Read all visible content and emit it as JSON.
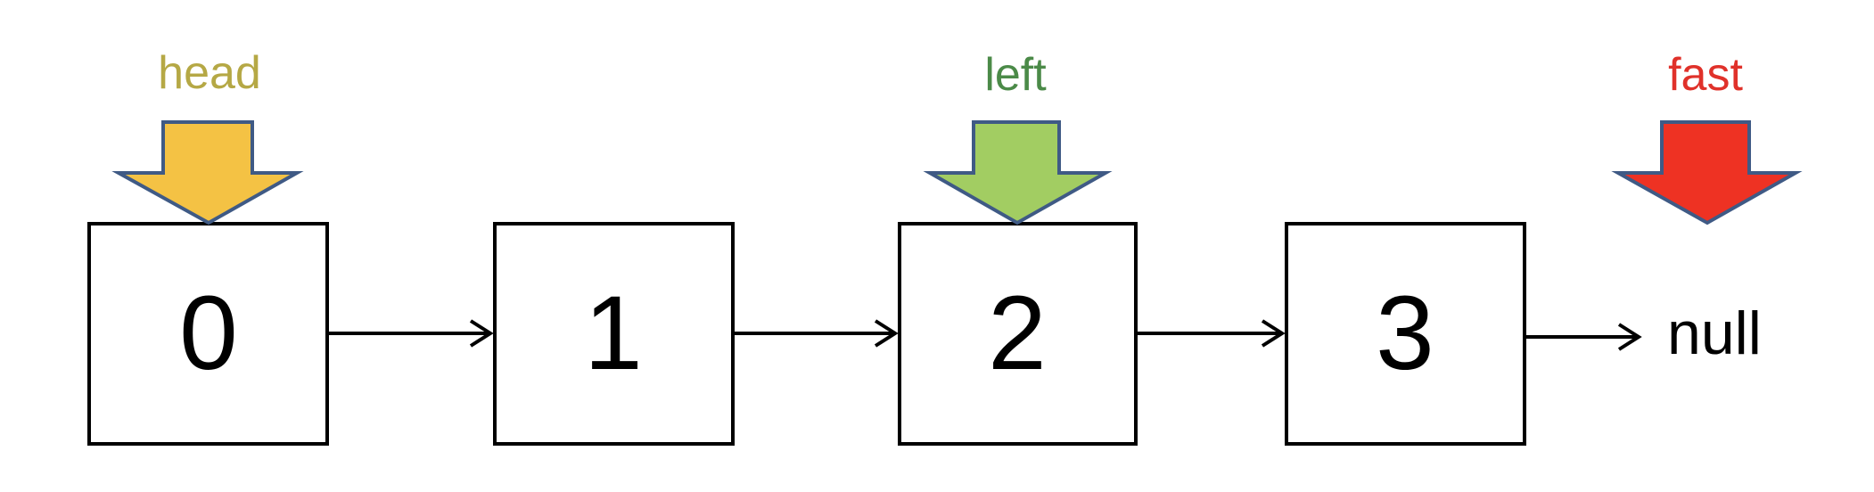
{
  "nodes": [
    {
      "value": "0"
    },
    {
      "value": "1"
    },
    {
      "value": "2"
    },
    {
      "value": "3"
    }
  ],
  "terminal": "null",
  "pointers": [
    {
      "label": "head",
      "color": "#b5a845",
      "fill": "#f4c244"
    },
    {
      "label": "left",
      "color": "#4b8a48",
      "fill": "#a2cd62"
    },
    {
      "label": "fast",
      "color": "#e0312a",
      "fill": "#ee3223"
    }
  ],
  "colors": {
    "box_stroke": "#000000",
    "arrow_outline": "#3f5a85",
    "text": "#000000"
  }
}
